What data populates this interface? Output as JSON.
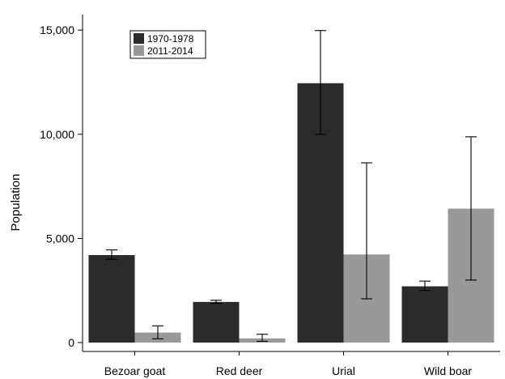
{
  "chart_data": {
    "type": "bar",
    "title": "",
    "xlabel": "",
    "ylabel": "Population",
    "ylim": [
      0,
      15600
    ],
    "yticks": [
      0,
      5000,
      10000,
      15000
    ],
    "ytick_labels": [
      "0",
      "5,000",
      "10,000",
      "15,000"
    ],
    "categories": [
      "Bezoar goat",
      "Red deer",
      "Urial",
      "Wild boar"
    ],
    "series": [
      {
        "name": "1970-1978",
        "color": "#2b2b2b",
        "values": [
          4200,
          1950,
          12450,
          2700
        ],
        "error_low": [
          4000,
          1880,
          10000,
          2500
        ],
        "error_high": [
          4450,
          2030,
          14980,
          2950
        ]
      },
      {
        "name": "2011-2014",
        "color": "#999999",
        "values": [
          480,
          200,
          4230,
          6430
        ],
        "error_low": [
          180,
          60,
          2100,
          3000
        ],
        "error_high": [
          800,
          400,
          8630,
          9880
        ]
      }
    ],
    "error_bars": true,
    "grid": false,
    "legend_position": "top-left"
  }
}
